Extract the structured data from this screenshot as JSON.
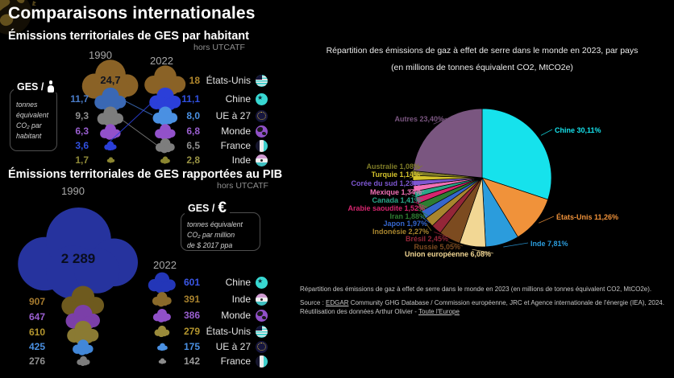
{
  "header": {
    "title": "Comparaisons internationales"
  },
  "footer": {
    "caption": "Répartition des émissions de gaz à effet de serre dans le monde en 2023 (en millions de tonnes équivalent CO2, MtCO2e).",
    "source_prefix": "Source : ",
    "source_link": "EDGAR",
    "source_rest": " Community GHG Database / Commission européenne, JRC et Agence internationale de l'énergie (IEA), 2024.",
    "reuse_prefix": "Réutilisation des données Arthur Olivier - ",
    "reuse_link": "Toute l'Europe"
  },
  "chart_data": [
    {
      "id": "per_capita",
      "type": "pictogram-ranking",
      "title": "Émissions territoriales de GES par habitant",
      "note": "hors UTCATF",
      "years": [
        "1990",
        "2022"
      ],
      "legend": {
        "title": "GES /",
        "icon": "person-icon",
        "unit_lines": [
          "tonnes",
          "équivalent",
          "CO₂ par",
          "habitant"
        ]
      },
      "col_1990": [
        {
          "country": "États-Unis",
          "value": 24.7,
          "label": "24,7",
          "color": "#8a6226",
          "value_color": "#10141f",
          "on_cloud": true
        },
        {
          "country": "UE à 27",
          "value": 11.7,
          "label": "11,7",
          "color": "#3a68b4",
          "value_color": "#4a7cc8"
        },
        {
          "country": "France",
          "value": 9.3,
          "label": "9,3",
          "color": "#7d7d7d",
          "value_color": "#8f8f8f"
        },
        {
          "country": "Monde",
          "value": 6.3,
          "label": "6,3",
          "color": "#9251ca",
          "value_color": "#9a5fd0"
        },
        {
          "country": "Chine",
          "value": 3.6,
          "label": "3,6",
          "color": "#2b3fd9",
          "value_color": "#3050e0"
        },
        {
          "country": "Inde",
          "value": 1.7,
          "label": "1,7",
          "color": "#8a8530",
          "value_color": "#8f8a38"
        }
      ],
      "col_2022": [
        {
          "country": "États-Unis",
          "value": 18,
          "label": "18",
          "color": "#8a6226",
          "value_color": "#b1872c"
        },
        {
          "country": "Chine",
          "value": 11.1,
          "label": "11,1",
          "color": "#2b3fd9",
          "value_color": "#3050e0"
        },
        {
          "country": "UE à 27",
          "value": 8.0,
          "label": "8,0",
          "color": "#4a90e2",
          "value_color": "#4a90e2"
        },
        {
          "country": "Monde",
          "value": 6.8,
          "label": "6,8",
          "color": "#9251ca",
          "value_color": "#9a5fd0"
        },
        {
          "country": "France",
          "value": 6.5,
          "label": "6,5",
          "color": "#7d7d7d",
          "value_color": "#8f8f8f"
        },
        {
          "country": "Inde",
          "value": 2.8,
          "label": "2,8",
          "color": "#8a8530",
          "value_color": "#9a9444"
        }
      ],
      "countries": [
        {
          "name": "États-Unis",
          "flag": "us"
        },
        {
          "name": "Chine",
          "flag": "cn"
        },
        {
          "name": "UE à 27",
          "flag": "eu"
        },
        {
          "name": "Monde",
          "flag": "world"
        },
        {
          "name": "France",
          "flag": "fr"
        },
        {
          "name": "Inde",
          "flag": "in"
        }
      ],
      "connectors": [
        {
          "country": "UE à 27",
          "from": 1,
          "to": 2,
          "color": "#3a68b4"
        },
        {
          "country": "France",
          "from": 2,
          "to": 4,
          "color": "#7d7d7d"
        },
        {
          "country": "Chine",
          "from": 4,
          "to": 1,
          "color": "#2b3fd9"
        }
      ]
    },
    {
      "id": "per_gdp",
      "type": "pictogram-ranking",
      "title": "Émissions territoriales de GES rapportées au PIB",
      "note": "hors UTCATF",
      "years": [
        "1990",
        "2022"
      ],
      "legend": {
        "title": "GES /",
        "icon_symbol": "€",
        "unit_lines": [
          "tonnes équivalent",
          "CO₂ par million",
          "de $ 2017 ppa"
        ]
      },
      "big_1990": {
        "country": "Chine",
        "value": 2289,
        "label": "2 289",
        "color": "#26339e",
        "value_color": "#090d1e"
      },
      "col_1990": [
        {
          "country": "Inde",
          "value": 907,
          "label": "907",
          "color": "#6e5a1e",
          "value_color": "#a57a2e"
        },
        {
          "country": "Monde",
          "value": 647,
          "label": "647",
          "color": "#7b3fa8",
          "value_color": "#9a5fd0"
        },
        {
          "country": "États-Unis",
          "value": 610,
          "label": "610",
          "color": "#8a7a33",
          "value_color": "#b4962e"
        },
        {
          "country": "UE à 27",
          "value": 425,
          "label": "425",
          "color": "#4287d8",
          "value_color": "#4a90e2"
        },
        {
          "country": "France",
          "value": 276,
          "label": "276",
          "color": "#7d7d7d",
          "value_color": "#8f8f8f"
        }
      ],
      "col_2022": [
        {
          "country": "Chine",
          "value": 601,
          "label": "601",
          "color": "#2336b8",
          "value_color": "#3b57e8"
        },
        {
          "country": "Inde",
          "value": 391,
          "label": "391",
          "color": "#8a6a2a",
          "value_color": "#a8822e"
        },
        {
          "country": "Monde",
          "value": 386,
          "label": "386",
          "color": "#9050c8",
          "value_color": "#9a5fd0"
        },
        {
          "country": "États-Unis",
          "value": 279,
          "label": "279",
          "color": "#9a8a3a",
          "value_color": "#b4962e"
        },
        {
          "country": "UE à 27",
          "value": 175,
          "label": "175",
          "color": "#4a90e2",
          "value_color": "#4a90e2"
        },
        {
          "country": "France",
          "value": 142,
          "label": "142",
          "color": "#8a8a8a",
          "value_color": "#9a9a9a"
        }
      ],
      "countries": [
        {
          "name": "Chine",
          "flag": "cn"
        },
        {
          "name": "Inde",
          "flag": "in"
        },
        {
          "name": "Monde",
          "flag": "world"
        },
        {
          "name": "États-Unis",
          "flag": "us"
        },
        {
          "name": "UE à 27",
          "flag": "eu"
        },
        {
          "name": "France",
          "flag": "fr"
        }
      ]
    },
    {
      "id": "world_pie",
      "type": "pie",
      "title_line1": "Répartition des émissions de gaz à effet de serre dans le monde en 2023, par pays",
      "title_line2": "(en millions de tonnes équivalent CO2, MtCO2e)",
      "legend_position": "around",
      "slices": [
        {
          "name": "Chine",
          "value": 30.11,
          "pct": "30,11%",
          "color": "#16e2ec"
        },
        {
          "name": "États-Unis",
          "value": 11.26,
          "pct": "11,26%",
          "color": "#f0923a"
        },
        {
          "name": "Inde",
          "value": 7.81,
          "pct": "7,81%",
          "color": "#2b9cdc"
        },
        {
          "name": "Union européenne",
          "value": 6.08,
          "pct": "6,08%",
          "color": "#f2d794"
        },
        {
          "name": "Russie",
          "value": 5.05,
          "pct": "5,05%",
          "color": "#7c4b20"
        },
        {
          "name": "Brésil",
          "value": 2.45,
          "pct": "2,45%",
          "color": "#942638"
        },
        {
          "name": "Indonésie",
          "value": 2.27,
          "pct": "2,27%",
          "color": "#a8852e"
        },
        {
          "name": "Japon",
          "value": 1.97,
          "pct": "1,97%",
          "color": "#3566cc"
        },
        {
          "name": "Iran",
          "value": 1.88,
          "pct": "1,88%",
          "color": "#2e7d32"
        },
        {
          "name": "Arabie saoudite",
          "value": 1.52,
          "pct": "1,52%",
          "color": "#d6256e"
        },
        {
          "name": "Canada",
          "value": 1.41,
          "pct": "1,41%",
          "color": "#2aa789"
        },
        {
          "name": "Mexique",
          "value": 1.34,
          "pct": "1,34%",
          "color": "#f271b6"
        },
        {
          "name": "Corée du sud",
          "value": 1.23,
          "pct": "1,23%",
          "color": "#7e57d2"
        },
        {
          "name": "Turquie",
          "value": 1.14,
          "pct": "1,14%",
          "color": "#d4c32c"
        },
        {
          "name": "Australie",
          "value": 1.08,
          "pct": "1,08%",
          "color": "#7f7c27"
        },
        {
          "name": "Autres",
          "value": 23.4,
          "pct": "23,40%",
          "color": "#7a5680"
        }
      ]
    }
  ]
}
